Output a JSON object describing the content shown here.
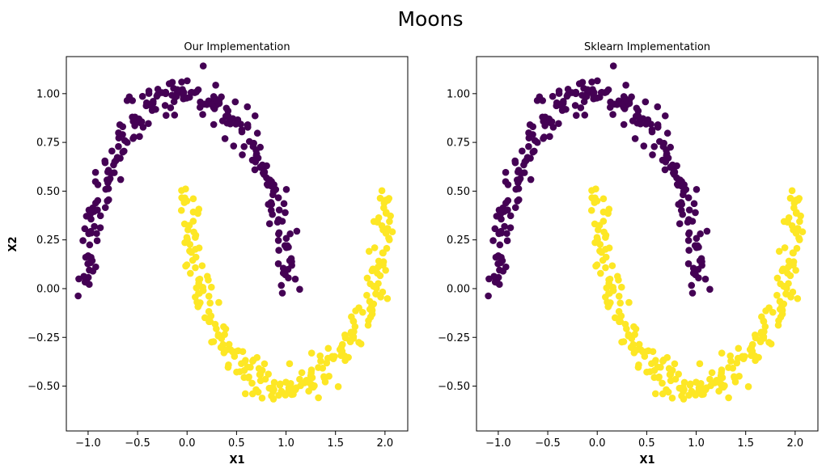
{
  "figure": {
    "suptitle": "Moons"
  },
  "colors": {
    "class_0": "#440154",
    "class_1": "#fde725"
  },
  "chart_data": [
    {
      "type": "scatter",
      "title": "Our Implementation",
      "xlabel": "X1",
      "ylabel": "X2",
      "xlim": [
        -1.22,
        2.23
      ],
      "ylim": [
        -0.73,
        1.19
      ],
      "xticks": [
        -1.0,
        -0.5,
        0.0,
        0.5,
        1.0,
        1.5,
        2.0
      ],
      "xtick_labels": [
        "−1.0",
        "−0.5",
        "0.0",
        "0.5",
        "1.0",
        "1.5",
        "2.0"
      ],
      "yticks": [
        -0.5,
        -0.25,
        0.0,
        0.25,
        0.5,
        0.75,
        1.0
      ],
      "ytick_labels": [
        "−0.50",
        "−0.25",
        "0.00",
        "0.25",
        "0.50",
        "0.75",
        "1.00"
      ],
      "grid": false,
      "n_points_per_class": 250,
      "noise_sd": 0.05,
      "seed": 7,
      "series": [
        {
          "class": 0,
          "color": "#440154"
        },
        {
          "class": 1,
          "color": "#fde725"
        }
      ]
    },
    {
      "type": "scatter",
      "title": "Sklearn Implementation",
      "xlabel": "X1",
      "ylabel": "",
      "xlim": [
        -1.22,
        2.23
      ],
      "ylim": [
        -0.73,
        1.19
      ],
      "xticks": [
        -1.0,
        -0.5,
        0.0,
        0.5,
        1.0,
        1.5,
        2.0
      ],
      "xtick_labels": [
        "−1.0",
        "−0.5",
        "0.0",
        "0.5",
        "1.0",
        "1.5",
        "2.0"
      ],
      "yticks": [
        -0.5,
        -0.25,
        0.0,
        0.25,
        0.5,
        0.75,
        1.0
      ],
      "ytick_labels": [
        "−0.50",
        "−0.25",
        "0.00",
        "0.25",
        "0.50",
        "0.75",
        "1.00"
      ],
      "grid": false,
      "n_points_per_class": 250,
      "noise_sd": 0.05,
      "seed": 7,
      "series": [
        {
          "class": 0,
          "color": "#440154"
        },
        {
          "class": 1,
          "color": "#fde725"
        }
      ]
    }
  ]
}
